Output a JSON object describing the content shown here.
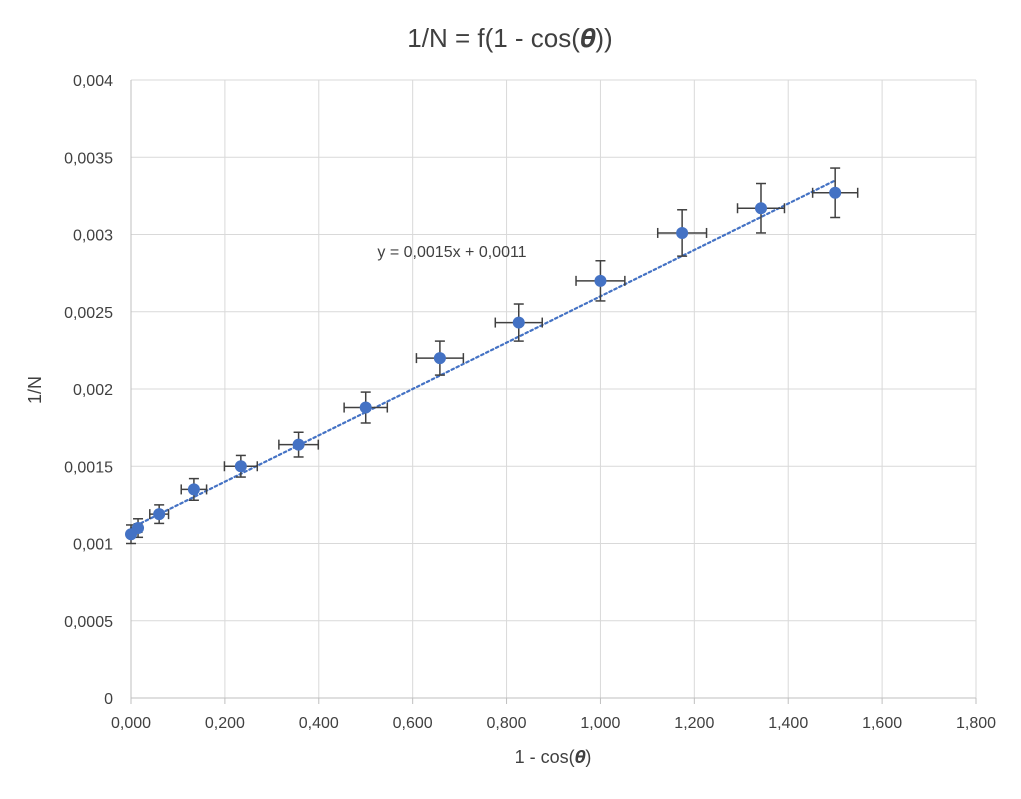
{
  "chart_data": {
    "type": "scatter",
    "title": "1/N = f(1 - cos(𝜽))",
    "xlabel": "1 - cos(𝜽)",
    "ylabel": "1/N",
    "xlim": [
      0,
      1.8
    ],
    "ylim": [
      0,
      0.004
    ],
    "x_ticks": [
      0,
      0.2,
      0.4,
      0.6,
      0.8,
      1.0,
      1.2,
      1.4,
      1.6,
      1.8
    ],
    "x_tick_labels": [
      "0,000",
      "0,200",
      "0,400",
      "0,600",
      "0,800",
      "1,000",
      "1,200",
      "1,400",
      "1,600",
      "1,800"
    ],
    "y_ticks": [
      0,
      0.0005,
      0.001,
      0.0015,
      0.002,
      0.0025,
      0.003,
      0.0035,
      0.004
    ],
    "y_tick_labels": [
      "0",
      "0,0005",
      "0,001",
      "0,0015",
      "0,002",
      "0,0025",
      "0,003",
      "0,0035",
      "0,004"
    ],
    "grid": true,
    "series": [
      {
        "color": "#4472c4",
        "x": [
          0.0,
          0.015,
          0.06,
          0.134,
          0.234,
          0.357,
          0.5,
          0.658,
          0.826,
          1.0,
          1.174,
          1.342,
          1.5
        ],
        "y": [
          0.00106,
          0.0011,
          0.00119,
          0.00135,
          0.0015,
          0.00164,
          0.00188,
          0.0022,
          0.00243,
          0.0027,
          0.00301,
          0.00317,
          0.00327
        ],
        "x_err": [
          0.004,
          0.008,
          0.02,
          0.027,
          0.035,
          0.042,
          0.046,
          0.05,
          0.05,
          0.052,
          0.052,
          0.05,
          0.048
        ],
        "y_err": [
          6e-05,
          6e-05,
          6e-05,
          7e-05,
          7e-05,
          8e-05,
          0.0001,
          0.00011,
          0.00012,
          0.00013,
          0.00015,
          0.00016,
          0.00016
        ]
      }
    ],
    "trendline": {
      "type": "linear",
      "slope": 0.0015,
      "intercept": 0.0011,
      "x_range": [
        0.0,
        1.5
      ],
      "equation_label": "y = 0,0015x + 0,0011",
      "color": "#4472c4"
    }
  }
}
